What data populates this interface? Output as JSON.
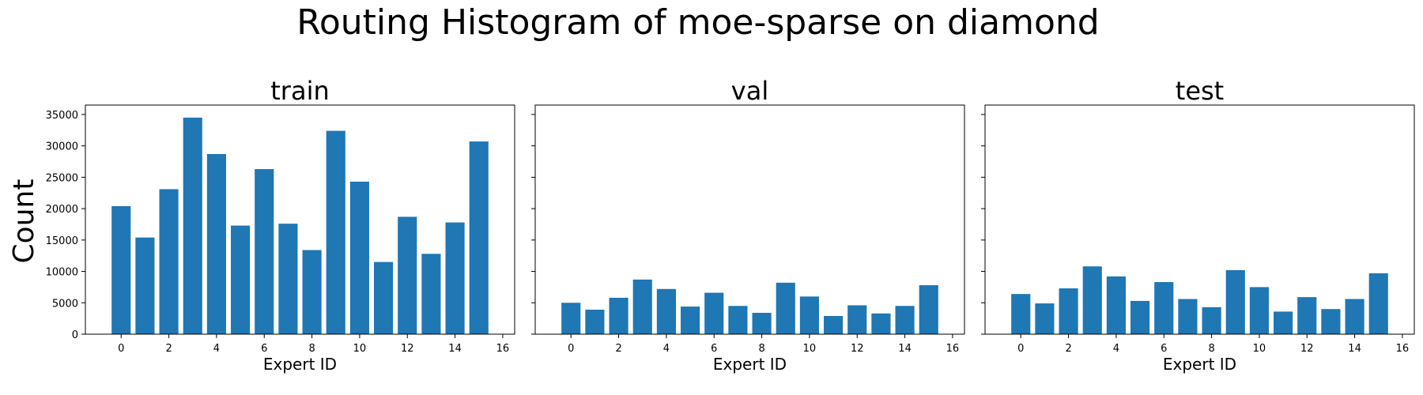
{
  "chart_data": {
    "type": "bar",
    "title": "Routing Histogram of moe-sparse on diamond",
    "ylabel": "Count",
    "ylim": [
      0,
      36500
    ],
    "yticks": [
      0,
      5000,
      10000,
      15000,
      20000,
      25000,
      30000,
      35000
    ],
    "xlim": [
      -1.5,
      16.5
    ],
    "xticks": [
      0,
      2,
      4,
      6,
      8,
      10,
      12,
      14,
      16
    ],
    "bar_color": "#1f77b4",
    "shared_y": true,
    "grid": false,
    "categories": [
      0,
      1,
      2,
      3,
      4,
      5,
      6,
      7,
      8,
      9,
      10,
      11,
      12,
      13,
      14,
      15
    ],
    "panels": [
      {
        "subtitle": "train",
        "xlabel": "Expert ID",
        "values": [
          20400,
          15400,
          23100,
          34500,
          28700,
          17300,
          26300,
          17600,
          13400,
          32400,
          24300,
          11500,
          18700,
          12800,
          17800,
          30700
        ]
      },
      {
        "subtitle": "val",
        "xlabel": "Expert ID",
        "values": [
          5000,
          3900,
          5800,
          8700,
          7200,
          4400,
          6600,
          4500,
          3400,
          8200,
          6000,
          2900,
          4600,
          3300,
          4500,
          7800
        ]
      },
      {
        "subtitle": "test",
        "xlabel": "Expert ID",
        "values": [
          6400,
          4900,
          7300,
          10800,
          9200,
          5300,
          8300,
          5600,
          4300,
          10200,
          7500,
          3600,
          5900,
          4000,
          5600,
          9700
        ]
      }
    ]
  }
}
